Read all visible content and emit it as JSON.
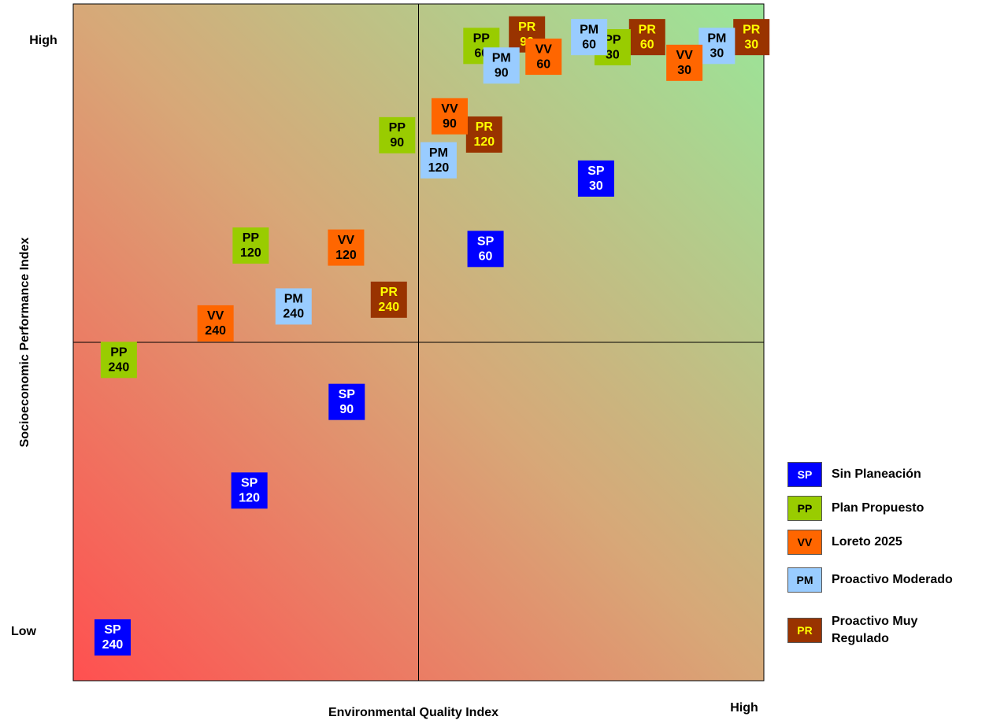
{
  "chart_data": {
    "type": "scatter",
    "x_label": "Environmental Quality Index",
    "y_label": "Socioeconomic Performance Index",
    "xlim": [
      0,
      100
    ],
    "ylim": [
      0,
      100
    ],
    "xticks": [
      {
        "value": 100,
        "label": "High"
      }
    ],
    "yticks": [
      {
        "value": 0,
        "label": "Low"
      },
      {
        "value": 100,
        "label": "High"
      }
    ],
    "series": [
      {
        "name": "Proactivo Muy Regulado",
        "code": "PR",
        "color": "#993300",
        "text_color": "#ffff00",
        "x": [
          98.2,
          83.1,
          65.7,
          59.5,
          45.7
        ],
        "values": [
          95.1,
          95.1,
          95.5,
          80.7,
          56.3
        ],
        "point_labels": [
          30,
          60,
          90,
          120,
          240
        ]
      },
      {
        "name": "Plan Propuesto",
        "code": "PP",
        "color": "#99cc00",
        "text_color": "#000000",
        "x": [
          78.1,
          59.1,
          46.9,
          25.7,
          6.6
        ],
        "values": [
          93.6,
          93.8,
          80.6,
          64.3,
          47.4
        ],
        "point_labels": [
          30,
          60,
          90,
          120,
          240
        ]
      },
      {
        "name": "Proactivo Moderado",
        "code": "PM",
        "color": "#99ccff",
        "text_color": "#000000",
        "x": [
          93.2,
          74.7,
          62.0,
          52.9,
          31.9
        ],
        "values": [
          93.8,
          95.1,
          90.9,
          76.9,
          55.3
        ],
        "point_labels": [
          30,
          60,
          90,
          120,
          240
        ]
      },
      {
        "name": "Loreto 2025",
        "code": "VV",
        "color": "#ff6600",
        "text_color": "#000000",
        "x": [
          88.5,
          68.1,
          54.5,
          39.5,
          20.6
        ],
        "values": [
          91.3,
          92.2,
          83.4,
          64.0,
          52.8
        ],
        "point_labels": [
          30,
          60,
          90,
          120,
          240
        ]
      },
      {
        "name": "Sin Planeación",
        "code": "SP",
        "color": "#0000ff",
        "text_color": "#ffffff",
        "x": [
          75.7,
          59.7,
          39.6,
          25.5,
          5.7
        ],
        "values": [
          74.2,
          63.8,
          41.2,
          28.1,
          6.4
        ],
        "point_labels": [
          30,
          60,
          90,
          120,
          240
        ]
      }
    ],
    "legend_order": [
      4,
      1,
      3,
      2,
      0
    ]
  }
}
